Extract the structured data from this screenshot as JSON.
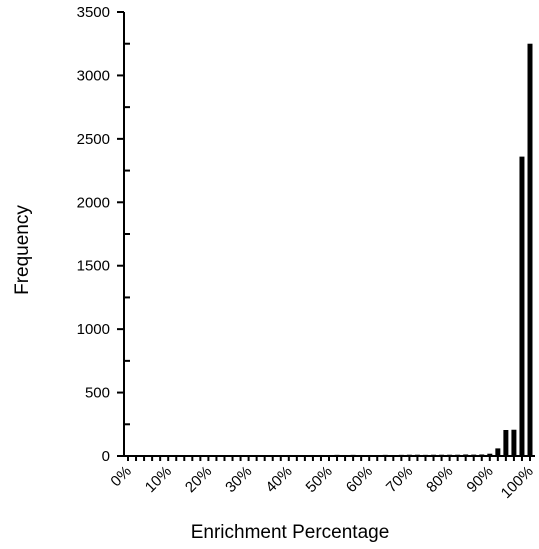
{
  "chart_data": {
    "type": "bar",
    "title": "",
    "xlabel": "Enrichment Percentage",
    "ylabel": "Frequency",
    "ylim": [
      0,
      3500
    ],
    "y_ticks": [
      0,
      500,
      1000,
      1500,
      2000,
      2500,
      3000,
      3500
    ],
    "x_tick_labels": [
      "0%",
      "10%",
      "20%",
      "30%",
      "40%",
      "50%",
      "60%",
      "70%",
      "80%",
      "90%",
      "100%"
    ],
    "grid": false,
    "legend": "none",
    "bin_width_percent": 2,
    "bin_start_percent": 0,
    "values": [
      2,
      2,
      3,
      2,
      7,
      6,
      8,
      5,
      4,
      5,
      6,
      5,
      7,
      6,
      7,
      6,
      8,
      7,
      7,
      6,
      8,
      8,
      7,
      8,
      8,
      7,
      9,
      8,
      9,
      8,
      8,
      8,
      9,
      8,
      9,
      10,
      10,
      9,
      10,
      10,
      10,
      10,
      12,
      11,
      12,
      18,
      60,
      205,
      207,
      2360,
      3250
    ],
    "bar_color": "#000000"
  }
}
